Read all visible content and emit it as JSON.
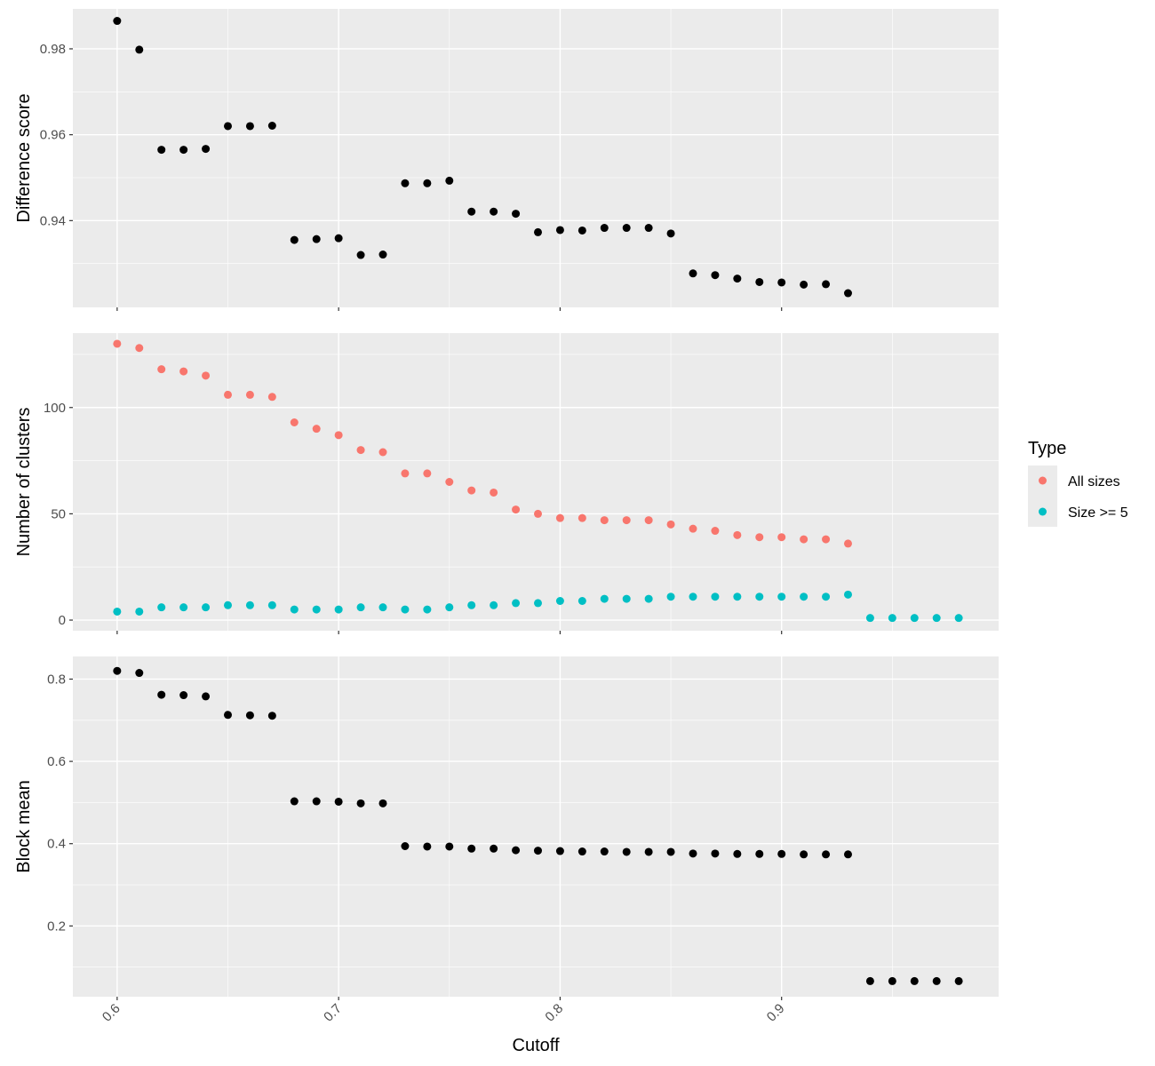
{
  "chart_data": {
    "type": "scatter",
    "xlabel": "Cutoff",
    "x_ticks": [
      "0.6",
      "0.7",
      "0.8",
      "0.9"
    ],
    "x_tick_values": [
      0.6,
      0.7,
      0.8,
      0.9
    ],
    "xlim": [
      0.58,
      0.998
    ],
    "grid": true,
    "legend": {
      "title": "Type",
      "position": "right",
      "entries": [
        {
          "label": "All sizes",
          "color": "#F8766D"
        },
        {
          "label": "Size >= 5",
          "color": "#00BFC4"
        }
      ]
    },
    "panels": [
      {
        "ylabel": "Difference score",
        "ylim": [
          0.9198,
          0.9893
        ],
        "y_ticks": [
          "0.94",
          "0.96",
          "0.98"
        ],
        "y_tick_values": [
          0.94,
          0.96,
          0.98
        ],
        "series": [
          {
            "color": "#000000",
            "points": [
              [
                0.6,
                0.9865
              ],
              [
                0.61,
                0.9798
              ],
              [
                0.62,
                0.9565
              ],
              [
                0.63,
                0.9565
              ],
              [
                0.64,
                0.9567
              ],
              [
                0.65,
                0.962
              ],
              [
                0.66,
                0.962
              ],
              [
                0.67,
                0.9621
              ],
              [
                0.68,
                0.9355
              ],
              [
                0.69,
                0.9357
              ],
              [
                0.7,
                0.9359
              ],
              [
                0.71,
                0.932
              ],
              [
                0.72,
                0.9321
              ],
              [
                0.73,
                0.9487
              ],
              [
                0.74,
                0.9487
              ],
              [
                0.75,
                0.9493
              ],
              [
                0.76,
                0.9421
              ],
              [
                0.77,
                0.9421
              ],
              [
                0.78,
                0.9416
              ],
              [
                0.79,
                0.9373
              ],
              [
                0.8,
                0.9378
              ],
              [
                0.81,
                0.9377
              ],
              [
                0.82,
                0.9383
              ],
              [
                0.83,
                0.9383
              ],
              [
                0.84,
                0.9383
              ],
              [
                0.85,
                0.937
              ],
              [
                0.86,
                0.9277
              ],
              [
                0.87,
                0.9273
              ],
              [
                0.88,
                0.9265
              ],
              [
                0.89,
                0.9257
              ],
              [
                0.9,
                0.9256
              ],
              [
                0.91,
                0.9251
              ],
              [
                0.92,
                0.9252
              ],
              [
                0.93,
                0.9231
              ]
            ]
          }
        ]
      },
      {
        "ylabel": "Number of clusters",
        "ylim": [
          -5,
          135
        ],
        "y_ticks": [
          "0",
          "50",
          "100"
        ],
        "y_tick_values": [
          0,
          50,
          100
        ],
        "series": [
          {
            "name": "All sizes",
            "color": "#F8766D",
            "points": [
              [
                0.6,
                130
              ],
              [
                0.61,
                128
              ],
              [
                0.62,
                118
              ],
              [
                0.63,
                117
              ],
              [
                0.64,
                115
              ],
              [
                0.65,
                106
              ],
              [
                0.66,
                106
              ],
              [
                0.67,
                105
              ],
              [
                0.68,
                93
              ],
              [
                0.69,
                90
              ],
              [
                0.7,
                87
              ],
              [
                0.71,
                80
              ],
              [
                0.72,
                79
              ],
              [
                0.73,
                69
              ],
              [
                0.74,
                69
              ],
              [
                0.75,
                65
              ],
              [
                0.76,
                61
              ],
              [
                0.77,
                60
              ],
              [
                0.78,
                52
              ],
              [
                0.79,
                50
              ],
              [
                0.8,
                48
              ],
              [
                0.81,
                48
              ],
              [
                0.82,
                47
              ],
              [
                0.83,
                47
              ],
              [
                0.84,
                47
              ],
              [
                0.85,
                45
              ],
              [
                0.86,
                43
              ],
              [
                0.87,
                42
              ],
              [
                0.88,
                40
              ],
              [
                0.89,
                39
              ],
              [
                0.9,
                39
              ],
              [
                0.91,
                38
              ],
              [
                0.92,
                38
              ],
              [
                0.93,
                36
              ]
            ]
          },
          {
            "name": "Size >= 5",
            "color": "#00BFC4",
            "points": [
              [
                0.6,
                4
              ],
              [
                0.61,
                4
              ],
              [
                0.62,
                6
              ],
              [
                0.63,
                6
              ],
              [
                0.64,
                6
              ],
              [
                0.65,
                7
              ],
              [
                0.66,
                7
              ],
              [
                0.67,
                7
              ],
              [
                0.68,
                5
              ],
              [
                0.69,
                5
              ],
              [
                0.7,
                5
              ],
              [
                0.71,
                6
              ],
              [
                0.72,
                6
              ],
              [
                0.73,
                5
              ],
              [
                0.74,
                5
              ],
              [
                0.75,
                6
              ],
              [
                0.76,
                7
              ],
              [
                0.77,
                7
              ],
              [
                0.78,
                8
              ],
              [
                0.79,
                8
              ],
              [
                0.8,
                9
              ],
              [
                0.81,
                9
              ],
              [
                0.82,
                10
              ],
              [
                0.83,
                10
              ],
              [
                0.84,
                10
              ],
              [
                0.85,
                11
              ],
              [
                0.86,
                11
              ],
              [
                0.87,
                11
              ],
              [
                0.88,
                11
              ],
              [
                0.89,
                11
              ],
              [
                0.9,
                11
              ],
              [
                0.91,
                11
              ],
              [
                0.92,
                11
              ],
              [
                0.93,
                12
              ],
              [
                0.94,
                1
              ],
              [
                0.95,
                1
              ],
              [
                0.96,
                1
              ],
              [
                0.97,
                1
              ],
              [
                0.98,
                1
              ]
            ]
          }
        ]
      },
      {
        "ylabel": "Block mean",
        "ylim": [
          0.028,
          0.855
        ],
        "y_ticks": [
          "0.2",
          "0.4",
          "0.6",
          "0.8"
        ],
        "y_tick_values": [
          0.2,
          0.4,
          0.6,
          0.8
        ],
        "series": [
          {
            "color": "#000000",
            "points": [
              [
                0.6,
                0.82
              ],
              [
                0.61,
                0.815
              ],
              [
                0.62,
                0.762
              ],
              [
                0.63,
                0.761
              ],
              [
                0.64,
                0.758
              ],
              [
                0.65,
                0.713
              ],
              [
                0.66,
                0.712
              ],
              [
                0.67,
                0.711
              ],
              [
                0.68,
                0.503
              ],
              [
                0.69,
                0.503
              ],
              [
                0.7,
                0.502
              ],
              [
                0.71,
                0.498
              ],
              [
                0.72,
                0.498
              ],
              [
                0.73,
                0.394
              ],
              [
                0.74,
                0.393
              ],
              [
                0.75,
                0.393
              ],
              [
                0.76,
                0.388
              ],
              [
                0.77,
                0.388
              ],
              [
                0.78,
                0.384
              ],
              [
                0.79,
                0.383
              ],
              [
                0.8,
                0.382
              ],
              [
                0.81,
                0.381
              ],
              [
                0.82,
                0.381
              ],
              [
                0.83,
                0.38
              ],
              [
                0.84,
                0.38
              ],
              [
                0.85,
                0.38
              ],
              [
                0.86,
                0.376
              ],
              [
                0.87,
                0.376
              ],
              [
                0.88,
                0.375
              ],
              [
                0.89,
                0.375
              ],
              [
                0.9,
                0.375
              ],
              [
                0.91,
                0.374
              ],
              [
                0.92,
                0.374
              ],
              [
                0.93,
                0.374
              ],
              [
                0.94,
                0.066
              ],
              [
                0.95,
                0.066
              ],
              [
                0.96,
                0.066
              ],
              [
                0.97,
                0.066
              ],
              [
                0.98,
                0.066
              ]
            ]
          }
        ]
      }
    ]
  }
}
